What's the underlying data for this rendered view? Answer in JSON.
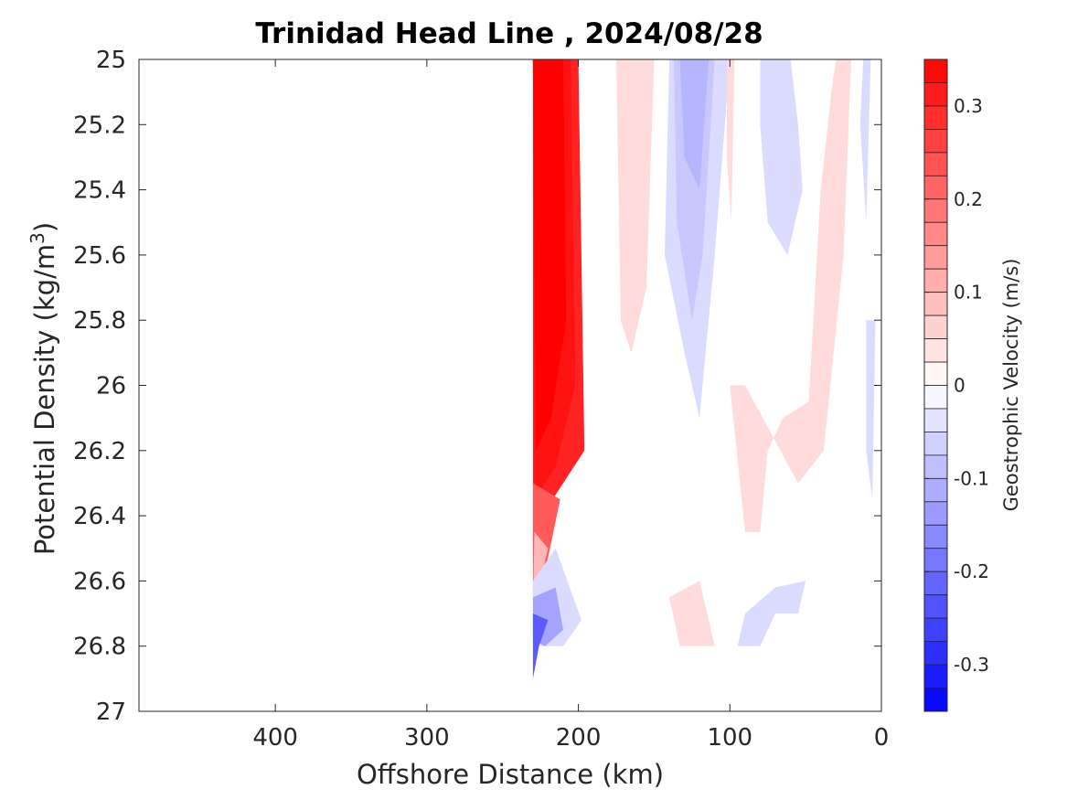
{
  "chart_data": {
    "type": "contour",
    "title": "Trinidad Head Line , 2024/08/28",
    "xlabel": "Offshore Distance (km)",
    "ylabel": "Potential Density (kg/m",
    "ylabel_sup": "3",
    "ylabel_close": ")",
    "xlim": [
      490,
      0
    ],
    "ylim": [
      25,
      27
    ],
    "x_reversed": true,
    "y_reversed": true,
    "x_ticks": [
      {
        "value": 400,
        "label": "400"
      },
      {
        "value": 300,
        "label": "300"
      },
      {
        "value": 200,
        "label": "200"
      },
      {
        "value": 100,
        "label": "100"
      },
      {
        "value": 0,
        "label": "0"
      }
    ],
    "y_ticks": [
      {
        "value": 25.0,
        "label": "25"
      },
      {
        "value": 25.2,
        "label": "25.2"
      },
      {
        "value": 25.4,
        "label": "25.4"
      },
      {
        "value": 25.6,
        "label": "25.6"
      },
      {
        "value": 25.8,
        "label": "25.8"
      },
      {
        "value": 26.0,
        "label": "26"
      },
      {
        "value": 26.2,
        "label": "26.2"
      },
      {
        "value": 26.4,
        "label": "26.4"
      },
      {
        "value": 26.6,
        "label": "26.6"
      },
      {
        "value": 26.8,
        "label": "26.8"
      },
      {
        "value": 27.0,
        "label": "27"
      }
    ],
    "grid": false,
    "colorbar": {
      "label": "Geostrophic Velocity (m/s)",
      "min": -0.35,
      "max": 0.35,
      "step": 0.025,
      "positive_color": "#ff0000",
      "negative_color": "#0000ff",
      "neutral_color": "#ffffff",
      "ticks": [
        {
          "value": 0.3,
          "label": "0.3"
        },
        {
          "value": 0.2,
          "label": "0.2"
        },
        {
          "value": 0.1,
          "label": "0.1"
        },
        {
          "value": 0.0,
          "label": "0"
        },
        {
          "value": -0.1,
          "label": "-0.1"
        },
        {
          "value": -0.2,
          "label": "-0.2"
        },
        {
          "value": -0.3,
          "label": "-0.3"
        }
      ]
    },
    "regions": [
      {
        "name": "shelf-break-core-jet",
        "v": 0.3,
        "points": [
          [
            230,
            25.0
          ],
          [
            200,
            25.0
          ],
          [
            196,
            26.2
          ],
          [
            217,
            26.35
          ],
          [
            230,
            26.5
          ]
        ]
      },
      {
        "name": "jet-inner-1",
        "v": 0.325,
        "points": [
          [
            230,
            25.0
          ],
          [
            205,
            25.0
          ],
          [
            202,
            26.0
          ],
          [
            215,
            26.25
          ],
          [
            229,
            26.35
          ]
        ]
      },
      {
        "name": "jet-inner-2",
        "v": 0.35,
        "points": [
          [
            230,
            25.0
          ],
          [
            210,
            25.0
          ],
          [
            208,
            25.8
          ],
          [
            218,
            26.1
          ],
          [
            228,
            26.2
          ]
        ]
      },
      {
        "name": "jet-lower-1",
        "v": 0.225,
        "points": [
          [
            230,
            26.3
          ],
          [
            212,
            26.35
          ],
          [
            221,
            26.55
          ],
          [
            230,
            26.65
          ]
        ]
      },
      {
        "name": "jet-lower-2",
        "v": 0.1,
        "points": [
          [
            229,
            26.45
          ],
          [
            220,
            26.5
          ],
          [
            225,
            26.6
          ],
          [
            230,
            26.68
          ]
        ]
      },
      {
        "name": "positive-band-160km",
        "v": 0.05,
        "points": [
          [
            175,
            25.0
          ],
          [
            150,
            25.0
          ],
          [
            155,
            25.7
          ],
          [
            165,
            25.9
          ],
          [
            172,
            25.8
          ]
        ]
      },
      {
        "name": "negative-band-130km-outer",
        "v": -0.05,
        "points": [
          [
            140,
            25.0
          ],
          [
            100,
            25.0
          ],
          [
            110,
            25.6
          ],
          [
            120,
            26.1
          ],
          [
            130,
            25.9
          ],
          [
            143,
            25.6
          ]
        ]
      },
      {
        "name": "negative-band-130km-inner",
        "v": -0.075,
        "points": [
          [
            137,
            25.0
          ],
          [
            110,
            25.0
          ],
          [
            118,
            25.6
          ],
          [
            125,
            25.8
          ],
          [
            135,
            25.5
          ]
        ]
      },
      {
        "name": "negative-band-130km-core",
        "v": -0.1,
        "points": [
          [
            133,
            25.0
          ],
          [
            114,
            25.0
          ],
          [
            120,
            25.4
          ],
          [
            130,
            25.3
          ]
        ]
      },
      {
        "name": "positive-sliver-100km",
        "v": 0.05,
        "points": [
          [
            102,
            25.0
          ],
          [
            97,
            25.0
          ],
          [
            99,
            25.5
          ],
          [
            102,
            25.3
          ]
        ]
      },
      {
        "name": "negative-patch-75km",
        "v": -0.05,
        "points": [
          [
            80,
            25.0
          ],
          [
            60,
            25.0
          ],
          [
            55,
            25.2
          ],
          [
            52,
            25.4
          ],
          [
            62,
            25.6
          ],
          [
            75,
            25.5
          ],
          [
            80,
            25.2
          ]
        ]
      },
      {
        "name": "positive-tongue-nearshore",
        "v": 0.05,
        "points": [
          [
            100,
            26.0
          ],
          [
            90,
            26.45
          ],
          [
            80,
            26.45
          ],
          [
            75,
            26.2
          ],
          [
            65,
            26.1
          ],
          [
            48,
            26.05
          ],
          [
            40,
            25.4
          ],
          [
            33,
            25.1
          ],
          [
            30,
            25.0
          ],
          [
            20,
            25.0
          ],
          [
            25,
            25.6
          ],
          [
            38,
            26.2
          ],
          [
            55,
            26.3
          ],
          [
            90,
            26.0
          ]
        ]
      },
      {
        "name": "negative-sliver-10km",
        "v": -0.05,
        "points": [
          [
            12,
            25.0
          ],
          [
            7,
            25.0
          ],
          [
            10,
            25.5
          ],
          [
            14,
            25.2
          ]
        ]
      },
      {
        "name": "negative-nearshore-edge",
        "v": -0.05,
        "points": [
          [
            10,
            25.8
          ],
          [
            4,
            25.8
          ],
          [
            6,
            26.35
          ],
          [
            10,
            26.2
          ]
        ]
      },
      {
        "name": "deep-negative-outer",
        "v": -0.05,
        "points": [
          [
            230,
            26.6
          ],
          [
            215,
            26.5
          ],
          [
            198,
            26.72
          ],
          [
            210,
            26.8
          ],
          [
            225,
            26.8
          ],
          [
            230,
            26.72
          ]
        ]
      },
      {
        "name": "deep-negative-mid",
        "v": -0.125,
        "points": [
          [
            230,
            26.65
          ],
          [
            215,
            26.62
          ],
          [
            210,
            26.75
          ],
          [
            222,
            26.8
          ],
          [
            230,
            26.78
          ]
        ]
      },
      {
        "name": "deep-negative-core",
        "v": -0.225,
        "points": [
          [
            230,
            26.7
          ],
          [
            220,
            26.72
          ],
          [
            226,
            26.8
          ],
          [
            230,
            26.9
          ]
        ]
      },
      {
        "name": "deep-positive-patch",
        "v": 0.05,
        "points": [
          [
            140,
            26.65
          ],
          [
            120,
            26.6
          ],
          [
            110,
            26.8
          ],
          [
            133,
            26.8
          ]
        ]
      },
      {
        "name": "deep-negative-nearshore",
        "v": -0.05,
        "points": [
          [
            90,
            26.7
          ],
          [
            70,
            26.62
          ],
          [
            50,
            26.6
          ],
          [
            55,
            26.7
          ],
          [
            70,
            26.7
          ],
          [
            80,
            26.8
          ],
          [
            95,
            26.8
          ]
        ]
      }
    ]
  }
}
